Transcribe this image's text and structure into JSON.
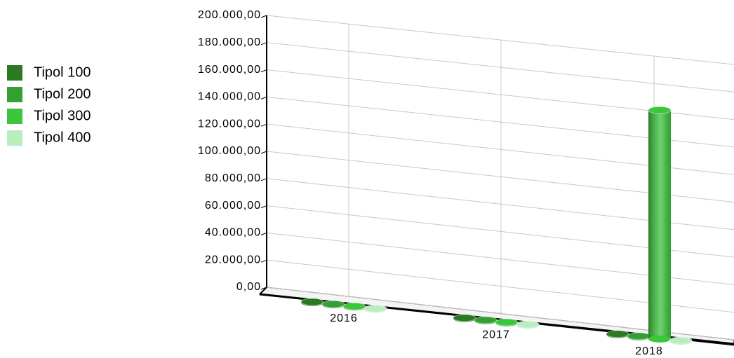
{
  "chart_data": {
    "type": "bar3d",
    "categories": [
      "2016",
      "2017",
      "2018"
    ],
    "series": [
      {
        "name": "Tipol 100",
        "color": "#2b7a22",
        "values": [
          500,
          500,
          500
        ]
      },
      {
        "name": "Tipol 200",
        "color": "#34a034",
        "values": [
          500,
          500,
          500
        ]
      },
      {
        "name": "Tipol 300",
        "color": "#3cc63c",
        "values": [
          500,
          500,
          170000
        ]
      },
      {
        "name": "Tipol 400",
        "color": "#b9ecbf",
        "values": [
          500,
          500,
          500
        ]
      }
    ],
    "ylim": [
      0,
      200000
    ],
    "yticks": [
      {
        "value": 0,
        "label": "0,00"
      },
      {
        "value": 20000,
        "label": "20.000,00"
      },
      {
        "value": 40000,
        "label": "40.000,00"
      },
      {
        "value": 60000,
        "label": "60.000,00"
      },
      {
        "value": 80000,
        "label": "80.000,00"
      },
      {
        "value": 100000,
        "label": "100.000,00"
      },
      {
        "value": 120000,
        "label": "120.000,00"
      },
      {
        "value": 140000,
        "label": "140.000,00"
      },
      {
        "value": 160000,
        "label": "160.000,00"
      },
      {
        "value": 180000,
        "label": "180.000,00"
      },
      {
        "value": 200000,
        "label": "200.000,00"
      }
    ],
    "grid": true,
    "legend": "left"
  }
}
